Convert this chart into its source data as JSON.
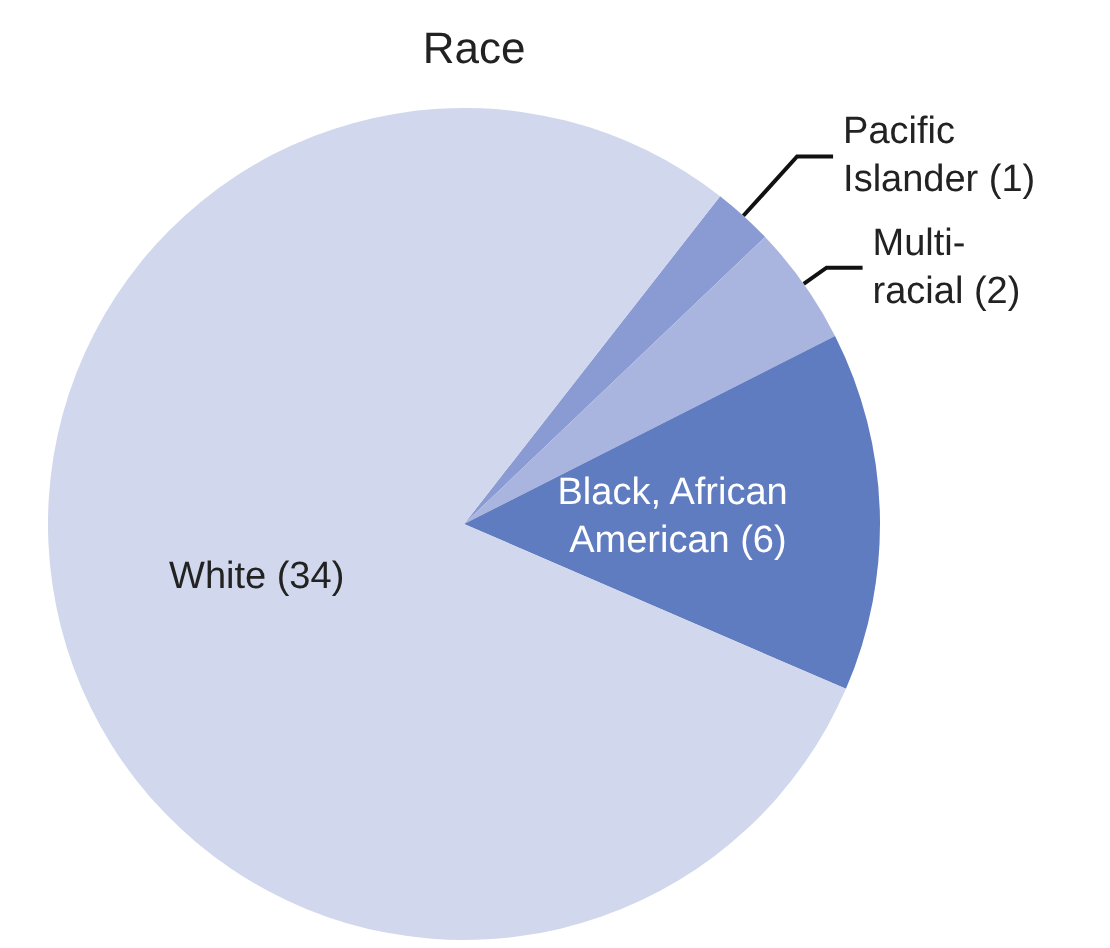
{
  "chart_data": {
    "type": "pie",
    "title": "Race",
    "categories": [
      "Pacific Islander",
      "Multi-racial",
      "Black, African American",
      "White"
    ],
    "values": [
      1,
      2,
      6,
      34
    ],
    "colors": [
      "#8a9bd3",
      "#a9b5df",
      "#5f7cc0",
      "#d1d7ec"
    ],
    "value_labels": [
      "(1)",
      "(2)",
      "(6)",
      "(34)"
    ],
    "legend": false
  }
}
